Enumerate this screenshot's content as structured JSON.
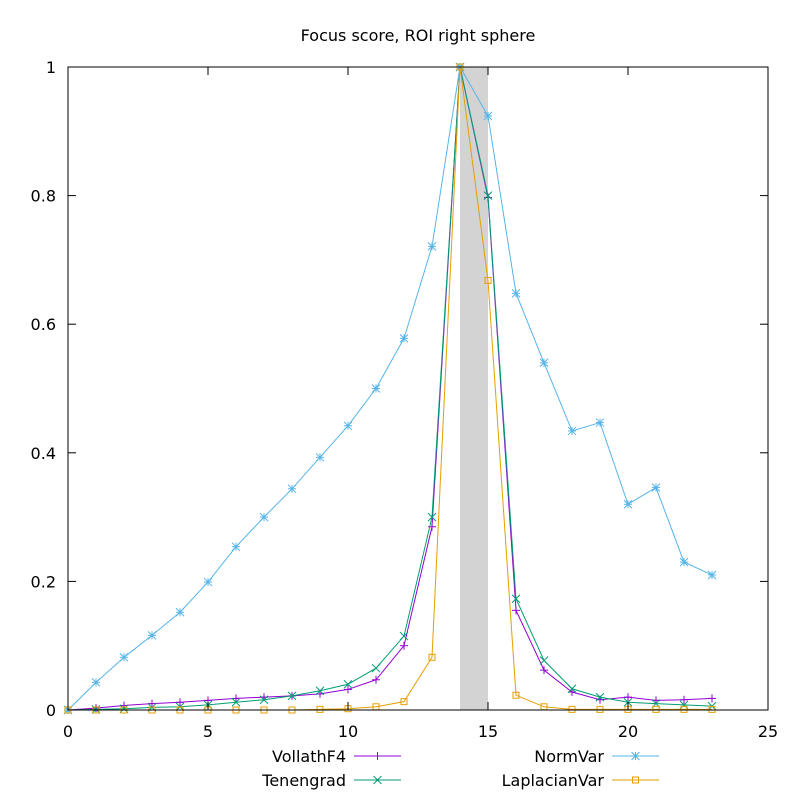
{
  "chart_data": {
    "type": "line",
    "title": "Focus score, ROI right sphere",
    "xlabel": "",
    "ylabel": "",
    "xlim": [
      0,
      25
    ],
    "ylim": [
      0,
      1
    ],
    "x_ticks": [
      0,
      5,
      10,
      15,
      20,
      25
    ],
    "y_ticks": [
      0,
      0.2,
      0.4,
      0.6,
      0.8,
      1
    ],
    "x_tick_labels": [
      "0",
      "5",
      "10",
      "15",
      "20",
      "25"
    ],
    "y_tick_labels": [
      "0",
      "0.2",
      "0.4",
      "0.6",
      "0.8",
      "1"
    ],
    "grid": false,
    "legend_position": "bottom",
    "highlight_band": {
      "x_from": 14,
      "x_to": 15,
      "color": "#d3d3d3"
    },
    "x": [
      0,
      1,
      2,
      3,
      4,
      5,
      6,
      7,
      8,
      9,
      10,
      11,
      12,
      13,
      14,
      15,
      16,
      17,
      18,
      19,
      20,
      21,
      22,
      23
    ],
    "series": [
      {
        "name": "VollathF4",
        "color": "#9400d3",
        "marker": "plus",
        "values": [
          0.0,
          0.003,
          0.007,
          0.01,
          0.012,
          0.015,
          0.018,
          0.02,
          0.022,
          0.025,
          0.032,
          0.047,
          0.1,
          0.285,
          1.0,
          0.797,
          0.155,
          0.062,
          0.028,
          0.016,
          0.02,
          0.015,
          0.016,
          0.018
        ]
      },
      {
        "name": "Tenengrad",
        "color": "#009e73",
        "marker": "cross",
        "values": [
          0.0,
          0.001,
          0.002,
          0.004,
          0.005,
          0.008,
          0.012,
          0.016,
          0.022,
          0.03,
          0.04,
          0.065,
          0.115,
          0.3,
          1.0,
          0.8,
          0.173,
          0.077,
          0.033,
          0.02,
          0.012,
          0.01,
          0.008,
          0.006
        ]
      },
      {
        "name": "NormVar",
        "color": "#56b4e9",
        "marker": "star",
        "values": [
          0.0,
          0.043,
          0.082,
          0.116,
          0.152,
          0.199,
          0.254,
          0.3,
          0.344,
          0.393,
          0.442,
          0.5,
          0.578,
          0.721,
          1.0,
          0.924,
          0.648,
          0.54,
          0.434,
          0.447,
          0.32,
          0.346,
          0.23,
          0.21
        ]
      },
      {
        "name": "LaplacianVar",
        "color": "#e69f00",
        "marker": "square",
        "values": [
          0.0,
          0.0,
          0.0,
          0.0,
          0.0,
          0.0,
          0.0,
          0.0,
          0.0,
          0.001,
          0.002,
          0.005,
          0.013,
          0.082,
          1.0,
          0.668,
          0.023,
          0.005,
          0.001,
          0.001,
          0.001,
          0.001,
          0.001,
          0.001
        ]
      }
    ]
  }
}
